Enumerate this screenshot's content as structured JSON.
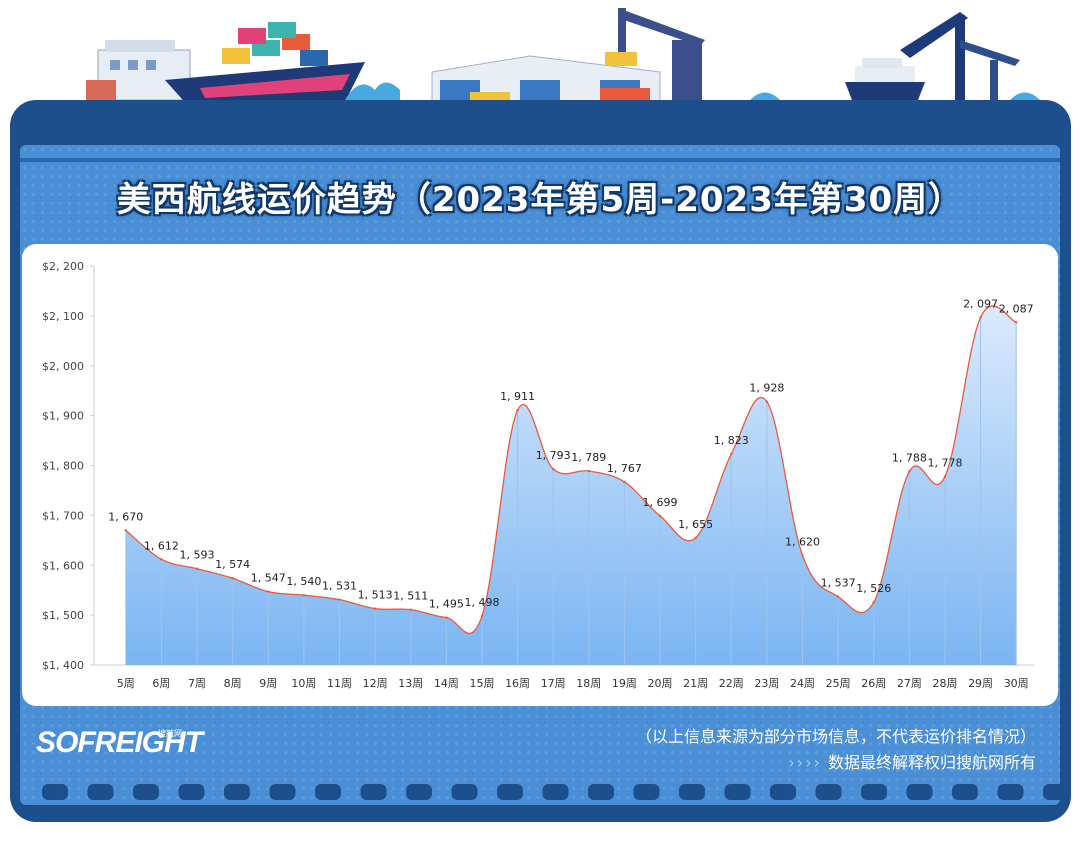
{
  "title": "美西航线运价趋势（2023年第5周-2023年第30周）",
  "brand": {
    "logo": "SOFREIGHT",
    "logo_sub": "搜航网"
  },
  "footer": {
    "note": "（以上信息来源为部分市场信息，不代表运价排名情况）",
    "arrows": "››››",
    "rights": "数据最终解释权归搜航网所有"
  },
  "colors": {
    "board": "#1d4f8c",
    "panel": "#4a8fd6",
    "line": "#e85a3c",
    "area_top": "#dbeafc",
    "area_bottom": "#7ab5f2"
  },
  "header_icons": [
    "harbor-building-icon",
    "container-ship-icon",
    "warehouse-icon",
    "port-crane-icon",
    "cruise-ship-icon",
    "gantry-crane-icon",
    "wave-icon"
  ],
  "chart_data": {
    "type": "area",
    "title": "美西航线运价趋势（2023年第5周-2023年第30周）",
    "xlabel": "",
    "ylabel": "",
    "ylim": [
      1400,
      2200
    ],
    "yticks": [
      "$1, 400",
      "$1, 500",
      "$1, 600",
      "$1, 700",
      "$1, 800",
      "$1, 900",
      "$2, 000",
      "$2, 100",
      "$2, 200"
    ],
    "ytick_values": [
      1400,
      1500,
      1600,
      1700,
      1800,
      1900,
      2000,
      2100,
      2200
    ],
    "categories": [
      "5周",
      "6周",
      "7周",
      "8周",
      "9周",
      "10周",
      "11周",
      "12周",
      "13周",
      "14周",
      "15周",
      "16周",
      "17周",
      "18周",
      "19周",
      "20周",
      "21周",
      "22周",
      "23周",
      "24周",
      "25周",
      "26周",
      "27周",
      "28周",
      "29周",
      "30周"
    ],
    "values": [
      1670,
      1612,
      1593,
      1574,
      1547,
      1540,
      1531,
      1513,
      1511,
      1495,
      1498,
      1911,
      1793,
      1789,
      1767,
      1699,
      1655,
      1823,
      1928,
      1620,
      1537,
      1526,
      1788,
      1778,
      2097,
      2087
    ],
    "data_labels": [
      "1, 670",
      "1, 612",
      "1, 593",
      "1, 574",
      "1, 547",
      "1, 540",
      "1, 531",
      "1, 513",
      "1, 511",
      "1, 495",
      "1, 498",
      "1, 911",
      "1, 793",
      "1, 789",
      "1, 767",
      "1, 699",
      "1, 655",
      "1, 823",
      "1, 928",
      "1, 620",
      "1, 537",
      "1, 526",
      "1, 788",
      "1, 778",
      "2, 097",
      "2, 087"
    ],
    "smooth": true,
    "grid": false,
    "legend": "none"
  }
}
